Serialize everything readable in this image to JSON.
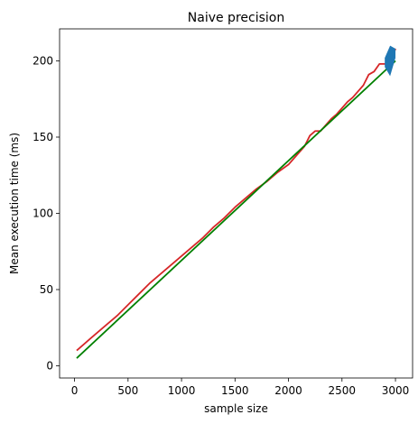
{
  "chart_data": {
    "type": "line",
    "title": "Naive precision",
    "xlabel": "sample size",
    "ylabel": "Mean execution time (ms)",
    "xlim": [
      -140,
      3160
    ],
    "ylim": [
      -8,
      221
    ],
    "x_ticks": [
      0,
      500,
      1000,
      1500,
      2000,
      2500,
      3000
    ],
    "y_ticks": [
      0,
      50,
      100,
      150,
      200
    ],
    "grid": false,
    "legend": "none",
    "series": [
      {
        "color": "#d62728",
        "style": "line",
        "x": [
          20,
          150,
          300,
          400,
          500,
          600,
          700,
          800,
          900,
          1000,
          1100,
          1200,
          1300,
          1400,
          1500,
          1600,
          1700,
          1800,
          1900,
          2000,
          2050,
          2100,
          2150,
          2200,
          2250,
          2300,
          2350,
          2400,
          2450,
          2500,
          2550,
          2600,
          2650,
          2700,
          2750,
          2800,
          2850,
          2900,
          2950,
          3000
        ],
        "y": [
          10,
          18,
          27,
          33,
          40,
          47,
          54,
          60,
          66,
          72,
          78,
          84,
          91,
          97,
          104,
          110,
          116,
          121,
          127,
          132,
          136,
          140,
          144,
          151,
          154,
          154,
          158,
          162,
          165,
          169,
          173,
          176,
          180,
          184,
          191,
          193,
          198,
          198,
          198,
          208
        ]
      },
      {
        "color": "#008000",
        "style": "line",
        "x": [
          20,
          3000
        ],
        "y": [
          5,
          200
        ]
      },
      {
        "color": "#1f77b4",
        "style": "band",
        "x": [
          2900,
          2950,
          3000
        ],
        "y_low": [
          196,
          190,
          202
        ],
        "y_high": [
          202,
          210,
          208
        ]
      }
    ]
  }
}
